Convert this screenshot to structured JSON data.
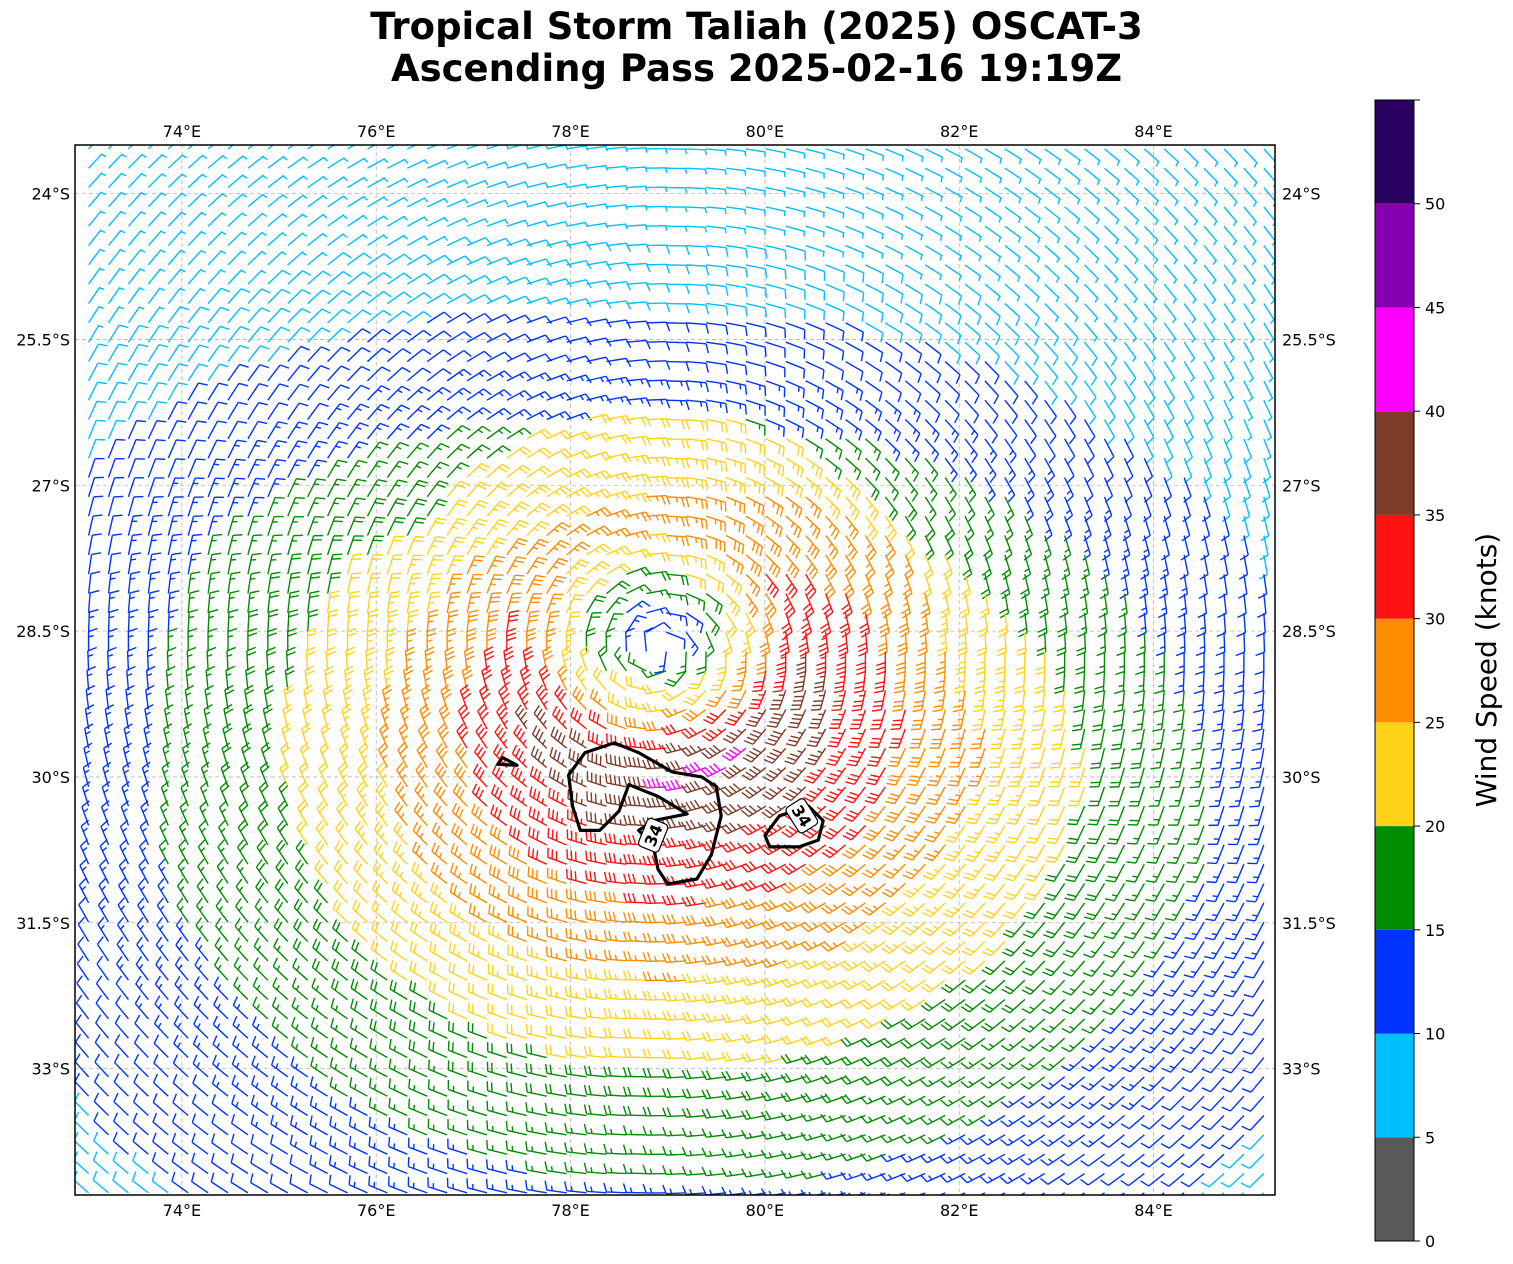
{
  "title": {
    "line1": "Tropical Storm Taliah (2025) OSCAT-3",
    "line2": "Ascending Pass 2025-02-16 19:19Z"
  },
  "map": {
    "lon_range": [
      72.9,
      85.25
    ],
    "lat_range": [
      -34.3,
      -23.5
    ],
    "lon_ticks": [
      {
        "value": 74,
        "label": "74°E"
      },
      {
        "value": 76,
        "label": "76°E"
      },
      {
        "value": 78,
        "label": "78°E"
      },
      {
        "value": 80,
        "label": "80°E"
      },
      {
        "value": 82,
        "label": "82°E"
      },
      {
        "value": 84,
        "label": "84°E"
      }
    ],
    "lat_ticks": [
      {
        "value": -24,
        "label": "24°S"
      },
      {
        "value": -25.5,
        "label": "25.5°S"
      },
      {
        "value": -27,
        "label": "27°S"
      },
      {
        "value": -28.5,
        "label": "28.5°S"
      },
      {
        "value": -30,
        "label": "30°S"
      },
      {
        "value": -31.5,
        "label": "31.5°S"
      },
      {
        "value": -33,
        "label": "33°S"
      }
    ],
    "gridlines": true,
    "storm_center": {
      "lon": 78.9,
      "lat": -28.7
    },
    "wind_barbs": "Cyclonic circulation (clockwise, Southern Hemisphere); weakest winds in the eye (10–20 kt), 30–40 kt band south and southeast of the center, 10–15 kt on the northern and eastern periphery, 15–25 kt on the southwest.",
    "contour": {
      "level": 34,
      "label": "34",
      "color": "#000000",
      "polygons": [
        [
          [
            77.3,
            -29.8
          ],
          [
            77.45,
            -29.88
          ],
          [
            77.25,
            -29.87
          ],
          [
            77.3,
            -29.8
          ]
        ],
        [
          [
            78.45,
            -29.65
          ],
          [
            78.7,
            -29.75
          ],
          [
            79.05,
            -29.95
          ],
          [
            79.35,
            -30.0
          ],
          [
            79.5,
            -30.1
          ],
          [
            79.55,
            -30.4
          ],
          [
            79.45,
            -30.8
          ],
          [
            79.3,
            -31.05
          ],
          [
            79.0,
            -31.1
          ],
          [
            78.9,
            -30.95
          ],
          [
            78.85,
            -30.7
          ],
          [
            78.7,
            -30.55
          ],
          [
            78.85,
            -30.45
          ],
          [
            79.2,
            -30.38
          ],
          [
            78.9,
            -30.2
          ],
          [
            78.6,
            -30.08
          ],
          [
            78.5,
            -30.35
          ],
          [
            78.3,
            -30.55
          ],
          [
            78.1,
            -30.55
          ],
          [
            78.02,
            -30.3
          ],
          [
            77.98,
            -29.98
          ],
          [
            78.15,
            -29.75
          ],
          [
            78.45,
            -29.65
          ]
        ],
        [
          [
            80.0,
            -30.6
          ],
          [
            80.15,
            -30.4
          ],
          [
            80.45,
            -30.3
          ],
          [
            80.6,
            -30.45
          ],
          [
            80.55,
            -30.65
          ],
          [
            80.35,
            -30.72
          ],
          [
            80.05,
            -30.72
          ],
          [
            80.0,
            -30.6
          ]
        ]
      ],
      "label_positions": [
        {
          "lon": 78.85,
          "lat": -30.6,
          "angle": -68
        },
        {
          "lon": 80.38,
          "lat": -30.4,
          "angle": 58
        }
      ]
    }
  },
  "colorbar": {
    "label": "Wind Speed (knots)",
    "bins": [
      {
        "min": 0,
        "max": 5,
        "color": "#595959"
      },
      {
        "min": 5,
        "max": 10,
        "color": "#00bfff"
      },
      {
        "min": 10,
        "max": 15,
        "color": "#0033ff"
      },
      {
        "min": 15,
        "max": 20,
        "color": "#008c00"
      },
      {
        "min": 20,
        "max": 25,
        "color": "#ffd21a"
      },
      {
        "min": 25,
        "max": 30,
        "color": "#ff8c00"
      },
      {
        "min": 30,
        "max": 35,
        "color": "#ff1111"
      },
      {
        "min": 35,
        "max": 40,
        "color": "#7f3c28"
      },
      {
        "min": 40,
        "max": 45,
        "color": "#ff00ff"
      },
      {
        "min": 45,
        "max": 50,
        "color": "#8400b0"
      },
      {
        "min": 50,
        "max": 55,
        "color": "#2a0060"
      }
    ],
    "tick_labels": [
      "0",
      "5",
      "10",
      "15",
      "20",
      "25",
      "30",
      "35",
      "40",
      "45",
      "50"
    ]
  }
}
